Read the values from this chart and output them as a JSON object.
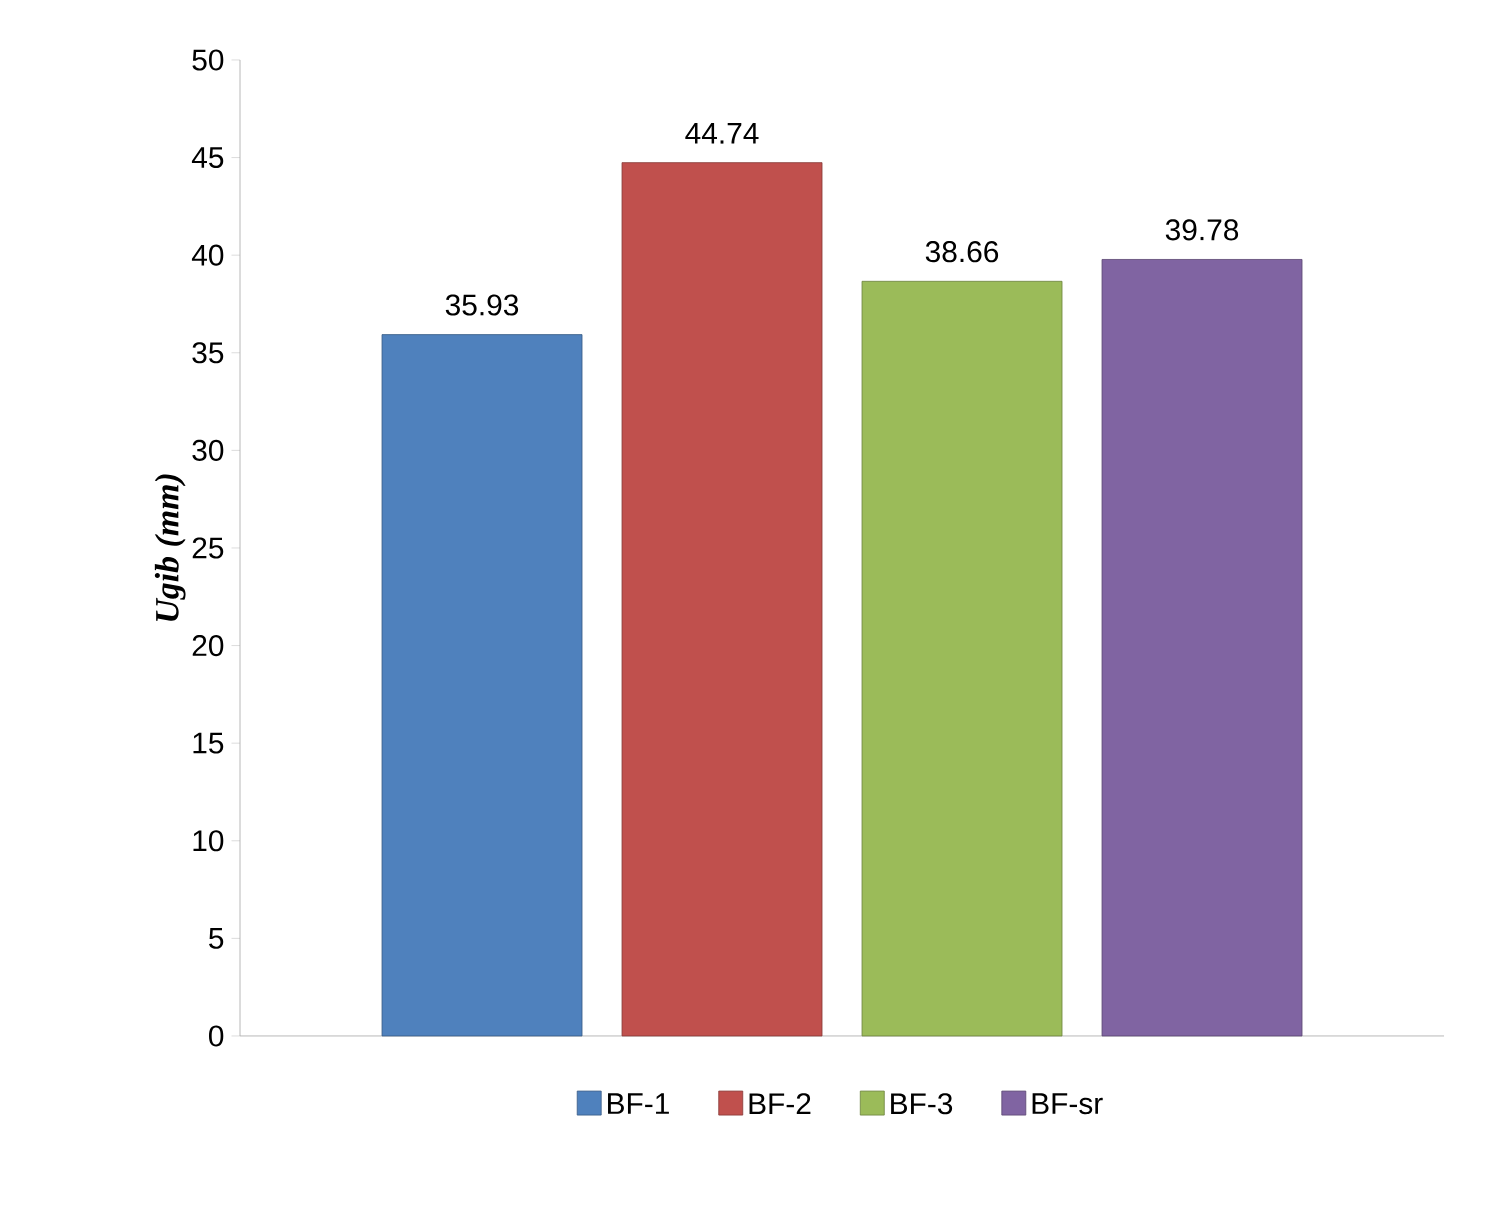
{
  "chart_data": {
    "type": "bar",
    "ylabel": "Ugib (mm)",
    "categories": [
      null
    ],
    "series": [
      {
        "name": "BF-1",
        "color": "#4f81bd",
        "values": [
          35.93
        ]
      },
      {
        "name": "BF-2",
        "color": "#c0504d",
        "values": [
          44.74
        ]
      },
      {
        "name": "BF-3",
        "color": "#9bbb59",
        "values": [
          38.66
        ]
      },
      {
        "name": "BF-sr",
        "color": "#8064a2",
        "values": [
          39.78
        ]
      }
    ],
    "ylim": [
      0,
      50
    ],
    "yticks": [
      0,
      5,
      10,
      15,
      20,
      25,
      30,
      35,
      40,
      45,
      50
    ],
    "data_labels": true,
    "legend": "bottom",
    "grid": false
  }
}
